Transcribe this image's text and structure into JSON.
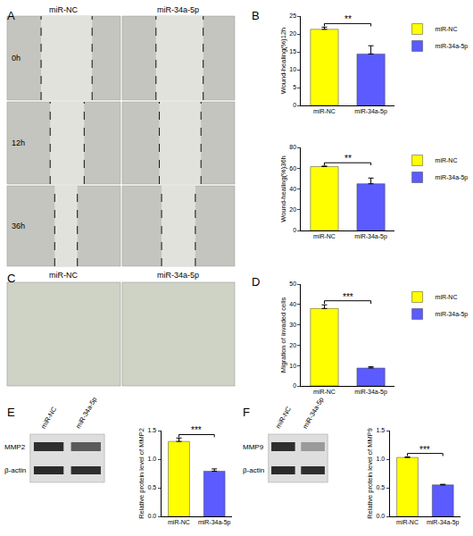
{
  "figure": {
    "panel_labels": [
      "A",
      "B",
      "C",
      "D",
      "E",
      "F"
    ],
    "A": {
      "columns": [
        "miR-NC",
        "miR-34a-5p"
      ],
      "rows": [
        "0h",
        "12h",
        "36h"
      ]
    },
    "C": {
      "columns": [
        "miR-NC",
        "miR-34a-5p"
      ]
    },
    "E": {
      "lanes": [
        "miR-NC",
        "miR-34a-5p"
      ],
      "bands": [
        "MMP2",
        "β-actin"
      ]
    },
    "F": {
      "lanes": [
        "miR-NC",
        "miR-34a-5p"
      ],
      "bands": [
        "MMP9",
        "β-actin"
      ]
    }
  },
  "chart_data": [
    {
      "type": "bar",
      "ylabel": "Wound-healing(%)12h",
      "categories": [
        "miR-NC",
        "miR-34a-5p"
      ],
      "series": [
        {
          "name": "miR-NC",
          "color": "#ffff00",
          "values": [
            21.3,
            null
          ],
          "errors": [
            0.6,
            null
          ]
        },
        {
          "name": "miR-34a-5p",
          "color": "#5b5bff",
          "values": [
            null,
            14.4
          ],
          "errors": [
            null,
            2.3
          ]
        }
      ],
      "ylim": [
        0,
        25
      ],
      "yticks": [
        0,
        5,
        10,
        15,
        20,
        25
      ],
      "legend": "right",
      "annotations": [
        {
          "text": "**",
          "between": [
            "miR-NC",
            "miR-34a-5p"
          ]
        }
      ]
    },
    {
      "type": "bar",
      "ylabel": "Wound-healing(%)36h",
      "categories": [
        "miR-NC",
        "miR-34a-5p"
      ],
      "series": [
        {
          "name": "miR-NC",
          "color": "#ffff00",
          "values": [
            61.5,
            null
          ],
          "errors": [
            0.5,
            null
          ]
        },
        {
          "name": "miR-34a-5p",
          "color": "#5b5bff",
          "values": [
            null,
            45
          ],
          "errors": [
            null,
            5.5
          ]
        }
      ],
      "ylim": [
        0,
        80
      ],
      "yticks": [
        0,
        20,
        40,
        60,
        80
      ],
      "legend": "right",
      "annotations": [
        {
          "text": "**",
          "between": [
            "miR-NC",
            "miR-34a-5p"
          ]
        }
      ]
    },
    {
      "type": "bar",
      "ylabel": "Migration of invaded cells",
      "categories": [
        "miR-NC",
        "miR-34a-5p"
      ],
      "series": [
        {
          "name": "miR-NC",
          "color": "#ffff00",
          "values": [
            38,
            null
          ],
          "errors": [
            1.8,
            null
          ]
        },
        {
          "name": "miR-34a-5p",
          "color": "#5b5bff",
          "values": [
            null,
            8.8
          ],
          "errors": [
            null,
            0.6
          ]
        }
      ],
      "ylim": [
        0,
        50
      ],
      "yticks": [
        0,
        10,
        20,
        30,
        40,
        50
      ],
      "legend": "right",
      "annotations": [
        {
          "text": "***",
          "between": [
            "miR-NC",
            "miR-34a-5p"
          ]
        }
      ]
    },
    {
      "type": "bar",
      "ylabel": "Relative protein level of MMP2",
      "categories": [
        "miR-NC",
        "miR-34a-5p"
      ],
      "series": [
        {
          "name": "miR-NC",
          "color": "#ffff00",
          "values": [
            1.31,
            null
          ],
          "errors": [
            0.06,
            null
          ]
        },
        {
          "name": "miR-34a-5p",
          "color": "#5b5bff",
          "values": [
            null,
            0.79
          ],
          "errors": [
            null,
            0.04
          ]
        }
      ],
      "ylim": [
        0,
        1.5
      ],
      "yticks": [
        {
          "value": 0,
          "label": "0.0"
        },
        {
          "value": 0.5,
          "label": "0.5"
        },
        {
          "value": 1,
          "label": "1.0"
        },
        {
          "value": 1.5,
          "label": "1.5"
        }
      ],
      "annotations": [
        {
          "text": "***",
          "between": [
            "miR-NC",
            "miR-34a-5p"
          ]
        }
      ]
    },
    {
      "type": "bar",
      "ylabel": "Relative protein level of MMP9",
      "categories": [
        "miR-NC",
        "miR-34a-5p"
      ],
      "series": [
        {
          "name": "miR-NC",
          "color": "#ffff00",
          "values": [
            1.03,
            null
          ],
          "errors": [
            0.01,
            null
          ]
        },
        {
          "name": "miR-34a-5p",
          "color": "#5b5bff",
          "values": [
            null,
            0.55
          ],
          "errors": [
            null,
            0.01
          ]
        }
      ],
      "ylim": [
        0,
        1.5
      ],
      "yticks": [
        {
          "value": 0,
          "label": "0.0"
        },
        {
          "value": 0.5,
          "label": "0.5"
        },
        {
          "value": 1,
          "label": "1.0"
        },
        {
          "value": 1.5,
          "label": "1.5"
        }
      ],
      "annotations": [
        {
          "text": "***",
          "between": [
            "miR-NC",
            "miR-34a-5p"
          ]
        }
      ]
    }
  ]
}
